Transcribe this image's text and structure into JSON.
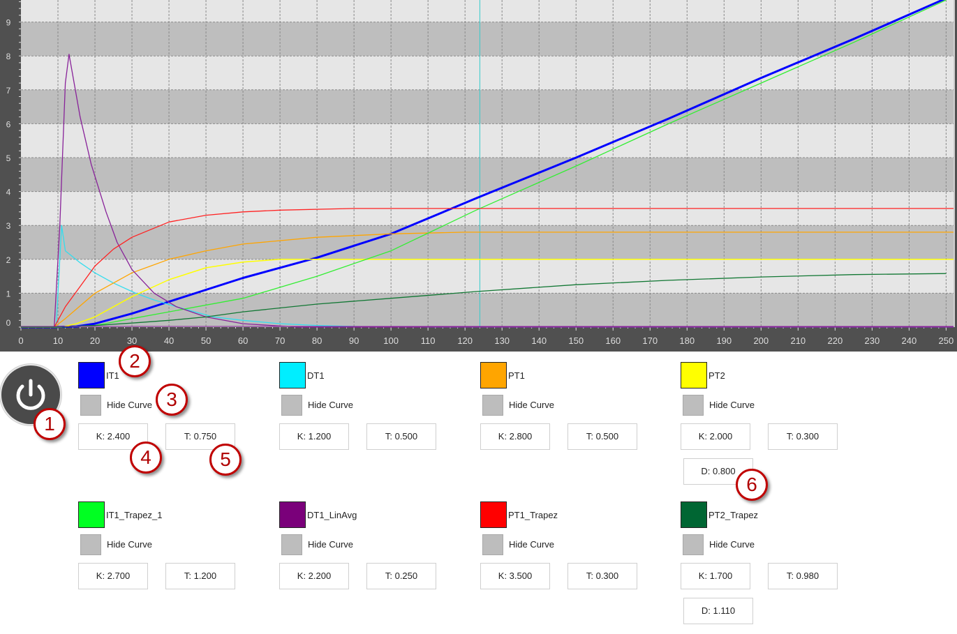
{
  "chart_data": {
    "type": "line",
    "xlim": [
      0,
      252
    ],
    "ylim": [
      0,
      9.65
    ],
    "x_ticks": [
      0,
      10,
      20,
      30,
      40,
      50,
      60,
      70,
      80,
      90,
      100,
      110,
      120,
      130,
      140,
      150,
      160,
      170,
      180,
      190,
      200,
      210,
      220,
      230,
      240,
      250
    ],
    "y_ticks": [
      0,
      1,
      2,
      3,
      4,
      5,
      6,
      7,
      8,
      9
    ],
    "grid": true,
    "cursor_x": 124,
    "cursor_color": "#33cccc",
    "series": [
      {
        "name": "IT1",
        "color": "#0000ff",
        "width": 3,
        "points": [
          [
            0,
            0
          ],
          [
            9,
            0
          ],
          [
            15,
            0.02
          ],
          [
            20,
            0.1
          ],
          [
            30,
            0.4
          ],
          [
            40,
            0.75
          ],
          [
            60,
            1.45
          ],
          [
            80,
            2.05
          ],
          [
            100,
            2.75
          ],
          [
            123,
            3.8
          ],
          [
            150,
            5.0
          ],
          [
            175,
            6.15
          ],
          [
            200,
            7.35
          ],
          [
            225,
            8.5
          ],
          [
            250,
            9.7
          ]
        ]
      },
      {
        "name": "DT1",
        "color": "#33ddee",
        "width": 1.3,
        "points": [
          [
            0,
            0
          ],
          [
            9.5,
            0
          ],
          [
            11,
            3.0
          ],
          [
            12,
            2.25
          ],
          [
            16,
            1.9
          ],
          [
            20,
            1.6
          ],
          [
            25,
            1.3
          ],
          [
            31,
            1.0
          ],
          [
            36,
            0.8
          ],
          [
            42,
            0.6
          ],
          [
            52,
            0.3
          ],
          [
            60,
            0.2
          ],
          [
            70,
            0.1
          ],
          [
            80,
            0.05
          ],
          [
            90,
            0.02
          ],
          [
            110,
            0
          ],
          [
            252,
            0
          ]
        ]
      },
      {
        "name": "PT1",
        "color": "#ffa500",
        "width": 1.3,
        "points": [
          [
            0,
            0
          ],
          [
            9,
            0
          ],
          [
            12,
            0.25
          ],
          [
            20,
            1.0
          ],
          [
            25,
            1.3
          ],
          [
            30,
            1.6
          ],
          [
            40,
            2.0
          ],
          [
            50,
            2.25
          ],
          [
            60,
            2.45
          ],
          [
            80,
            2.65
          ],
          [
            100,
            2.75
          ],
          [
            120,
            2.8
          ],
          [
            252,
            2.8
          ]
        ]
      },
      {
        "name": "PT2",
        "color": "#ffff00",
        "width": 1.5,
        "points": [
          [
            0,
            0
          ],
          [
            11,
            0
          ],
          [
            15,
            0.1
          ],
          [
            20,
            0.3
          ],
          [
            30,
            0.9
          ],
          [
            40,
            1.4
          ],
          [
            50,
            1.75
          ],
          [
            60,
            1.92
          ],
          [
            70,
            2.0
          ],
          [
            252,
            2.0
          ]
        ]
      },
      {
        "name": "IT1_Trapez_1",
        "color": "#33ee33",
        "width": 1.3,
        "points": [
          [
            0,
            0
          ],
          [
            10,
            0
          ],
          [
            20,
            0.05
          ],
          [
            30,
            0.25
          ],
          [
            40,
            0.45
          ],
          [
            60,
            0.85
          ],
          [
            80,
            1.5
          ],
          [
            100,
            2.25
          ],
          [
            123,
            3.45
          ],
          [
            150,
            4.75
          ],
          [
            175,
            6.0
          ],
          [
            200,
            7.2
          ],
          [
            225,
            8.4
          ],
          [
            250,
            9.65
          ]
        ]
      },
      {
        "name": "DT1_LinAvg",
        "color": "#882299",
        "width": 1.3,
        "points": [
          [
            0,
            0
          ],
          [
            9,
            0
          ],
          [
            10.5,
            3.0
          ],
          [
            12,
            7.2
          ],
          [
            13,
            8.05
          ],
          [
            16,
            6.2
          ],
          [
            19,
            4.8
          ],
          [
            23,
            3.4
          ],
          [
            26,
            2.5
          ],
          [
            30,
            1.7
          ],
          [
            36,
            1.0
          ],
          [
            42,
            0.6
          ],
          [
            50,
            0.3
          ],
          [
            60,
            0.1
          ],
          [
            75,
            0.0
          ],
          [
            252,
            0
          ]
        ]
      },
      {
        "name": "PT1_Trapez",
        "color": "#ff2222",
        "width": 1.3,
        "points": [
          [
            0,
            0
          ],
          [
            9,
            0
          ],
          [
            12,
            0.6
          ],
          [
            16,
            1.2
          ],
          [
            20,
            1.8
          ],
          [
            25,
            2.3
          ],
          [
            30,
            2.65
          ],
          [
            40,
            3.1
          ],
          [
            50,
            3.3
          ],
          [
            60,
            3.4
          ],
          [
            70,
            3.45
          ],
          [
            90,
            3.5
          ],
          [
            252,
            3.5
          ]
        ]
      },
      {
        "name": "PT2_Trapez",
        "color": "#117733",
        "width": 1.3,
        "points": [
          [
            0,
            0
          ],
          [
            11,
            0
          ],
          [
            20,
            0.05
          ],
          [
            30,
            0.12
          ],
          [
            40,
            0.2
          ],
          [
            50,
            0.3
          ],
          [
            60,
            0.45
          ],
          [
            80,
            0.68
          ],
          [
            100,
            0.85
          ],
          [
            123,
            1.05
          ],
          [
            150,
            1.25
          ],
          [
            175,
            1.38
          ],
          [
            200,
            1.48
          ],
          [
            225,
            1.55
          ],
          [
            250,
            1.58
          ]
        ]
      }
    ]
  },
  "legend": [
    {
      "name": "IT1",
      "color": "#0000ff",
      "hide_label": "Hide Curve",
      "k": "K: 2.400",
      "t": "T: 0.750"
    },
    {
      "name": "DT1",
      "color": "#00eeff",
      "hide_label": "Hide Curve",
      "k": "K: 1.200",
      "t": "T: 0.500"
    },
    {
      "name": "PT1",
      "color": "#ffa500",
      "hide_label": "Hide Curve",
      "k": "K: 2.800",
      "t": "T: 0.500"
    },
    {
      "name": "PT2",
      "color": "#ffff00",
      "hide_label": "Hide Curve",
      "k": "K: 2.000",
      "t": "T: 0.300",
      "d": "D: 0.800"
    },
    {
      "name": "IT1_Trapez_1",
      "color": "#00ff22",
      "hide_label": "Hide Curve",
      "k": "K: 2.700",
      "t": "T: 1.200"
    },
    {
      "name": "DT1_LinAvg",
      "color": "#7a007a",
      "hide_label": "Hide Curve",
      "k": "K: 2.200",
      "t": "T: 0.250"
    },
    {
      "name": "PT1_Trapez",
      "color": "#ff0000",
      "hide_label": "Hide Curve",
      "k": "K: 3.500",
      "t": "T: 0.300"
    },
    {
      "name": "PT2_Trapez",
      "color": "#006633",
      "hide_label": "Hide Curve",
      "k": "K: 1.700",
      "t": "T: 0.980",
      "d": "D: 1.110"
    }
  ],
  "power_button": {
    "icon": "power-icon"
  },
  "callouts": [
    "1",
    "2",
    "3",
    "4",
    "5",
    "6"
  ]
}
